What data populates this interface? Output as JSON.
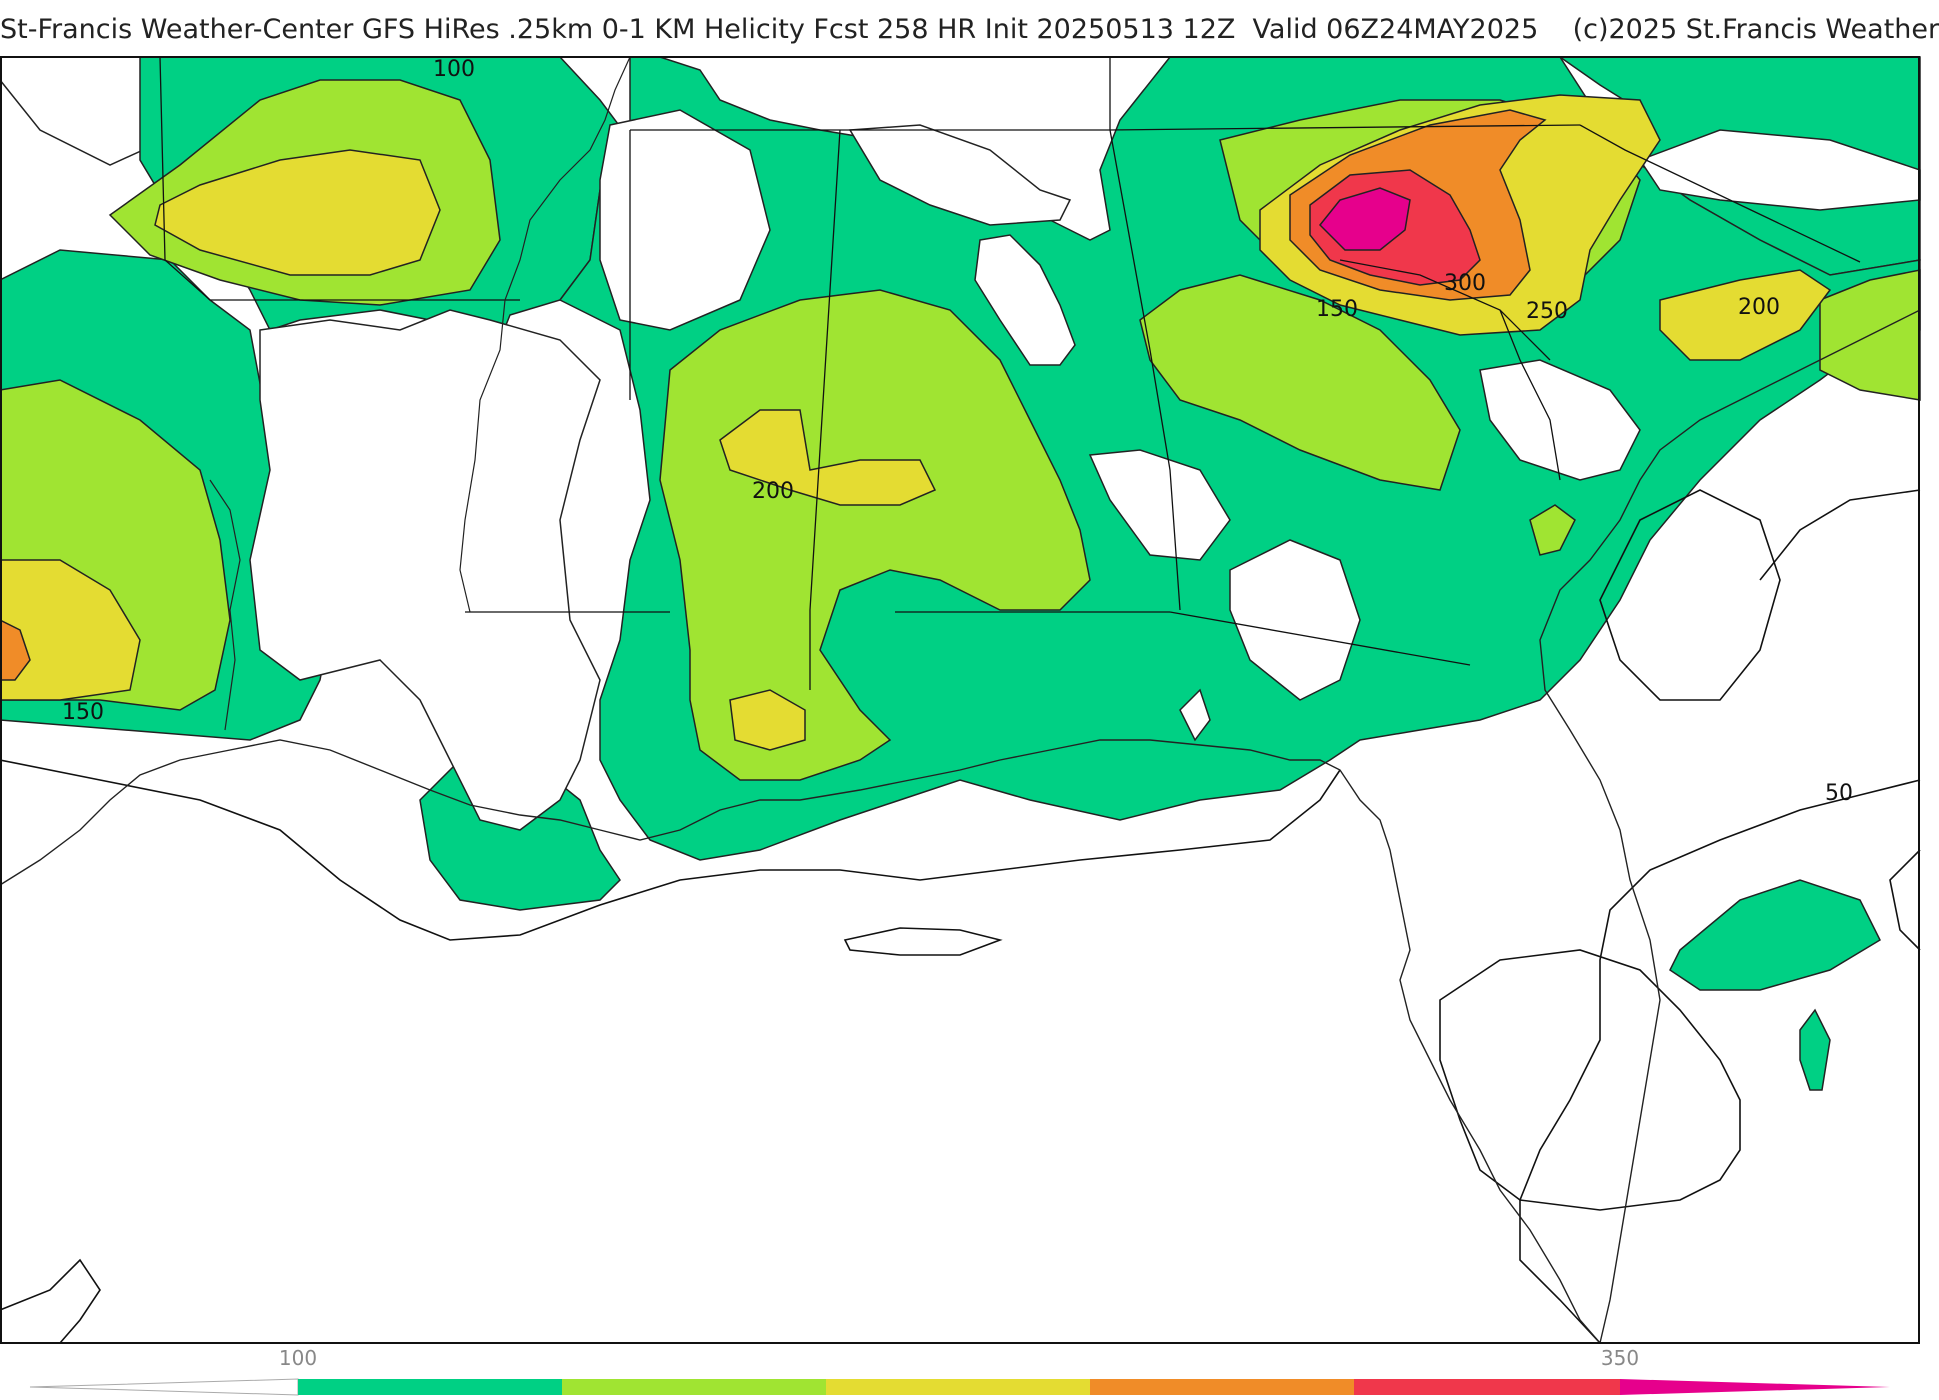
{
  "title": "St-Francis Weather-Center GFS HiRes .25km 0-1 KM Helicity Fcst 258 HR Init 20250513 12Z  Valid 06Z24MAY2025    (c)2025 St.Francis Weather",
  "map": {
    "field": "0-1 KM Helicity",
    "region": "Southeastern United States, Gulf of Mexico and Florida",
    "contour_labels": {
      "l100": "100",
      "l150a": "150",
      "l150b": "150",
      "l200a": "200",
      "l200b": "200",
      "l250": "250",
      "l300": "300",
      "l50": "50"
    },
    "fill_colors": {
      "c100": "#00d084",
      "c150": "#a0e432",
      "c200": "#e4dc32",
      "c250": "#f08c28",
      "c300": "#f0374b",
      "c350": "#e6008c"
    }
  },
  "colorbar": {
    "tick_100": "100",
    "tick_350": "350",
    "segments": [
      "#00d084",
      "#a0e432",
      "#e4dc32",
      "#f08c28",
      "#f0374b"
    ],
    "end_color": "#e6008c"
  }
}
